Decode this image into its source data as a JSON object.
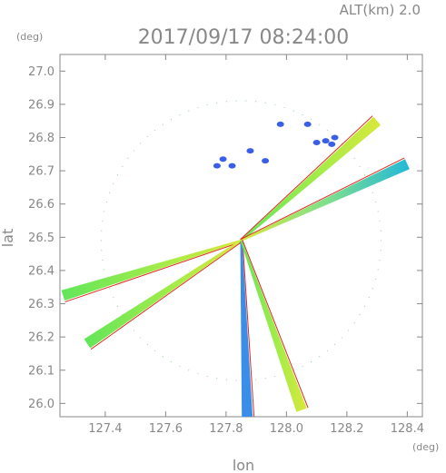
{
  "header": {
    "altitude_label": "ALT(km)  2.0",
    "timestamp": "2017/09/17 08:24:00"
  },
  "chart_data": {
    "type": "scatter",
    "title": "2017/09/17 08:24:00",
    "xlabel": "lon",
    "ylabel": "lat",
    "x_unit": "(deg)",
    "y_unit": "(deg)",
    "xlim": [
      127.25,
      128.45
    ],
    "ylim": [
      25.96,
      27.05
    ],
    "x_ticks": [
      127.4,
      127.6,
      127.8,
      128.0,
      128.2,
      128.4
    ],
    "y_ticks": [
      26.0,
      26.1,
      26.2,
      26.3,
      26.4,
      26.5,
      26.6,
      26.7,
      26.8,
      26.9,
      27.0
    ],
    "grid": false,
    "radar_center": [
      127.85,
      26.49
    ],
    "colors": {
      "blue": "#3a5ee8",
      "cyan": "#24b8d8",
      "green": "#62e65a",
      "yellow": "#d8e83a",
      "red": "#e0281e"
    },
    "echo_rays": [
      {
        "from": [
          127.85,
          26.49
        ],
        "to": [
          128.3,
          26.85
        ],
        "color_scheme": "green-yellow"
      },
      {
        "from": [
          127.85,
          26.49
        ],
        "to": [
          128.4,
          26.72
        ],
        "color_scheme": "yellow-cyan"
      },
      {
        "from": [
          127.85,
          26.49
        ],
        "to": [
          127.26,
          26.325
        ],
        "color_scheme": "green-yellow"
      },
      {
        "from": [
          127.85,
          26.49
        ],
        "to": [
          127.34,
          26.18
        ],
        "color_scheme": "green-yellow"
      },
      {
        "from": [
          127.85,
          26.49
        ],
        "to": [
          127.87,
          25.96
        ],
        "color_scheme": "blue-cyan"
      },
      {
        "from": [
          127.85,
          26.49
        ],
        "to": [
          128.05,
          25.98
        ],
        "color_scheme": "green-yellow"
      }
    ],
    "echo_cells": [
      {
        "lon": 127.98,
        "lat": 26.84,
        "color": "blue"
      },
      {
        "lon": 128.07,
        "lat": 26.84,
        "color": "blue"
      },
      {
        "lon": 128.1,
        "lat": 26.785,
        "color": "blue"
      },
      {
        "lon": 128.13,
        "lat": 26.79,
        "color": "blue"
      },
      {
        "lon": 128.16,
        "lat": 26.8,
        "color": "blue"
      },
      {
        "lon": 128.15,
        "lat": 26.78,
        "color": "blue"
      },
      {
        "lon": 127.79,
        "lat": 26.735,
        "color": "blue"
      },
      {
        "lon": 127.88,
        "lat": 26.76,
        "color": "blue"
      },
      {
        "lon": 127.93,
        "lat": 26.73,
        "color": "blue"
      },
      {
        "lon": 127.77,
        "lat": 26.715,
        "color": "blue"
      },
      {
        "lon": 127.82,
        "lat": 26.715,
        "color": "blue"
      }
    ]
  }
}
